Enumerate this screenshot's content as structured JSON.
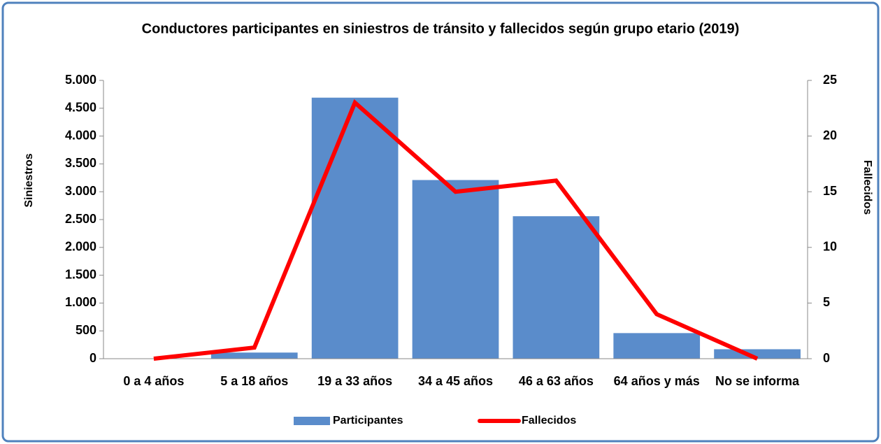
{
  "chart_data": {
    "type": "bar",
    "title": "Conductores participantes en siniestros de tránsito y fallecidos según grupo etario (2019)",
    "categories": [
      "0 a 4 años",
      "5 a 18 años",
      "19 a 33 años",
      "34 a 45 años",
      "46 a 63 años",
      "64 años y más",
      "No se informa"
    ],
    "series": [
      {
        "name": "Participantes",
        "type": "bar",
        "color": "#5a8ccb",
        "values": [
          0,
          110,
          4690,
          3210,
          2560,
          460,
          170
        ]
      },
      {
        "name": "Fallecidos",
        "type": "line",
        "axis": "y2",
        "color": "#ff0000",
        "values": [
          0,
          1,
          23,
          15,
          16,
          4,
          0
        ]
      }
    ],
    "ylabel": "Siniestros",
    "y2label": "Fallecidos",
    "ylim": [
      0,
      5000
    ],
    "yticks": [
      0,
      500,
      {
        "value": 1000,
        "label": "1.000"
      },
      {
        "value": 1500,
        "label": "1.500"
      },
      {
        "value": 2000,
        "label": "2.000"
      },
      {
        "value": 2500,
        "label": "2.500"
      },
      {
        "value": 3000,
        "label": "3.000"
      },
      {
        "value": 3500,
        "label": "3.500"
      },
      {
        "value": 4000,
        "label": "4.000"
      },
      {
        "value": 4500,
        "label": "4.500"
      },
      {
        "value": 5000,
        "label": "5.000"
      }
    ],
    "y2lim": [
      0,
      25
    ],
    "y2ticks": [
      0,
      5,
      10,
      15,
      20,
      25
    ],
    "legend": "bottom"
  }
}
